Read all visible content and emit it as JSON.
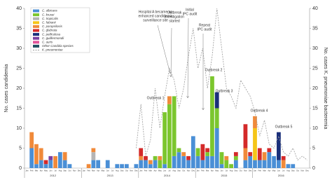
{
  "chart_data": {
    "type": "bar",
    "stacked": true,
    "y_label": "No. cases candidemia",
    "y2_label": "No. cases K. pneumoniae bacteremia",
    "ylim": [
      0,
      40
    ],
    "yticks": [
      0,
      5,
      10,
      15,
      20,
      25,
      30,
      35,
      40
    ],
    "y2lim": [
      0,
      40
    ],
    "y2ticks": [
      0,
      5,
      10,
      15,
      20,
      25,
      30,
      35,
      40
    ],
    "categories": [
      "Jan",
      "Feb",
      "Mar",
      "Apr",
      "May",
      "Jun",
      "Jul",
      "Aug",
      "Sep",
      "Oct",
      "Nov",
      "Dec",
      "Jan",
      "Feb",
      "Mar",
      "Apr",
      "May",
      "Jun",
      "Jul",
      "Aug",
      "Sep",
      "Oct",
      "Nov",
      "Dec",
      "Jan",
      "Feb",
      "Mar",
      "Apr",
      "May",
      "Jun",
      "Jul",
      "Aug",
      "Sep",
      "Oct",
      "Nov",
      "Dec",
      "Jan",
      "Feb",
      "Mar",
      "Apr",
      "May",
      "Jun",
      "Jul",
      "Aug",
      "Sep",
      "Oct",
      "Nov",
      "Dec",
      "Jan",
      "Feb",
      "Mar",
      "Apr",
      "May",
      "Jun",
      "Jul",
      "Aug",
      "Sep",
      "Oct",
      "Nov",
      "Dec"
    ],
    "year_labels": [
      "2012",
      "2013",
      "2014",
      "2015",
      "2016"
    ],
    "series": [
      {
        "name": "C. albicans",
        "color": "#4a8fd6",
        "values": [
          0,
          5,
          1,
          2,
          1,
          2,
          0,
          4,
          2,
          1,
          0,
          0,
          0,
          0,
          2,
          2,
          0,
          2,
          0,
          1,
          1,
          1,
          0,
          1,
          2,
          2,
          1,
          2,
          0,
          1,
          0,
          3,
          4,
          3,
          2,
          8,
          3,
          2,
          3,
          3,
          10,
          1,
          0,
          0,
          2,
          0,
          2,
          3,
          2,
          2,
          2,
          4,
          3,
          2,
          0,
          1,
          1,
          0,
          0,
          0
        ]
      },
      {
        "name": "C. krusei",
        "color": "#7cc62e",
        "values": [
          0,
          0,
          0,
          0,
          0,
          0,
          0,
          0,
          0,
          0,
          0,
          0,
          0,
          0,
          0,
          0,
          0,
          0,
          0,
          0,
          0,
          0,
          0,
          0,
          0,
          0,
          0,
          1,
          2,
          13,
          16,
          15,
          1,
          0,
          0,
          0,
          2,
          0,
          1,
          20,
          5,
          3,
          2,
          1,
          1,
          0,
          0,
          0,
          0,
          0,
          0,
          0,
          0,
          0,
          0,
          0,
          0,
          0,
          0,
          0
        ]
      },
      {
        "name": "C. tropicalis",
        "color": "#b5b5b5",
        "values": [
          0,
          0,
          0,
          0,
          0,
          0,
          0,
          0,
          0,
          0,
          0,
          0,
          0,
          0,
          2,
          0,
          0,
          0,
          0,
          0,
          0,
          0,
          0,
          0,
          0,
          0,
          0,
          0,
          0,
          0,
          0,
          0,
          0,
          0,
          0,
          0,
          0,
          0,
          0,
          0,
          0,
          0,
          0,
          0,
          0,
          0,
          0,
          0,
          0,
          0,
          0,
          0,
          0,
          0,
          0,
          0,
          0,
          0,
          0,
          0
        ]
      },
      {
        "name": "C. fabianii",
        "color": "#f5c518",
        "values": [
          0,
          0,
          0,
          0,
          0,
          0,
          0,
          0,
          0,
          0,
          0,
          0,
          0,
          0,
          0,
          0,
          0,
          0,
          0,
          0,
          0,
          0,
          0,
          0,
          0,
          0,
          0,
          0,
          0,
          0,
          0,
          0,
          0,
          0,
          0,
          0,
          0,
          0,
          0,
          0,
          0,
          0,
          0,
          0,
          0,
          0,
          0,
          0,
          8,
          0,
          0,
          0,
          0,
          0,
          0,
          0,
          0,
          0,
          0,
          0
        ]
      },
      {
        "name": "C. parapsilosis",
        "color": "#f08a3a",
        "values": [
          0,
          4,
          5,
          3,
          0,
          0,
          3,
          0,
          2,
          0,
          0,
          0,
          0,
          1,
          1,
          0,
          0,
          0,
          0,
          0,
          0,
          0,
          0,
          0,
          1,
          0,
          1,
          0,
          1,
          0,
          2,
          0,
          0,
          1,
          0,
          0,
          0,
          0,
          0,
          0,
          0,
          0,
          1,
          0,
          0,
          0,
          3,
          0,
          3,
          0,
          2,
          0,
          0,
          0,
          2,
          0,
          0,
          0,
          0,
          0
        ]
      },
      {
        "name": "C. glabrata",
        "color": "#d42a2a",
        "values": [
          0,
          0,
          0,
          0,
          1,
          0,
          0,
          0,
          0,
          0,
          0,
          0,
          0,
          0,
          0,
          0,
          0,
          0,
          0,
          0,
          0,
          0,
          0,
          0,
          2,
          1,
          0,
          0,
          0,
          0,
          0,
          0,
          0,
          0,
          1,
          0,
          0,
          4,
          1,
          0,
          0,
          0,
          0,
          0,
          1,
          0,
          6,
          1,
          0,
          3,
          0,
          1,
          0,
          0,
          1,
          0,
          0,
          0,
          0,
          0
        ]
      },
      {
        "name": "C. pelliculosa",
        "color": "#1a2f7a",
        "values": [
          0,
          0,
          0,
          0,
          0,
          0,
          0,
          0,
          0,
          0,
          0,
          0,
          0,
          0,
          0,
          0,
          0,
          0,
          0,
          0,
          0,
          0,
          0,
          0,
          0,
          0,
          0,
          0,
          0,
          0,
          0,
          0,
          0,
          0,
          0,
          0,
          0,
          0,
          0,
          0,
          4,
          0,
          0,
          0,
          0,
          0,
          0,
          0,
          0,
          0,
          0,
          0,
          0,
          7,
          0,
          0,
          0,
          0,
          0,
          0
        ]
      },
      {
        "name": "C. guilliermondii",
        "color": "#7b3fa0",
        "values": [
          0,
          0,
          0,
          0,
          0,
          1,
          0,
          0,
          0,
          0,
          0,
          0,
          0,
          0,
          0,
          0,
          0,
          0,
          0,
          0,
          0,
          0,
          0,
          0,
          0,
          0,
          0,
          0,
          0,
          0,
          0,
          0,
          0,
          0,
          0,
          0,
          0,
          0,
          0,
          0,
          0,
          0,
          0,
          0,
          0,
          0,
          0,
          0,
          0,
          0,
          0,
          0,
          0,
          0,
          0,
          0,
          0,
          0,
          0,
          0
        ]
      },
      {
        "name": "C. auris",
        "color": "#e0559a",
        "values": [
          0,
          0,
          0,
          0,
          0,
          0,
          0,
          0,
          0,
          0,
          0,
          0,
          0,
          0,
          0,
          0,
          0,
          0,
          0,
          0,
          0,
          0,
          0,
          0,
          0,
          0,
          0,
          0,
          0,
          0,
          0,
          0,
          0,
          0,
          0,
          0,
          0,
          0,
          0,
          0,
          0,
          0,
          0,
          0,
          0,
          0,
          0,
          0,
          0,
          0,
          0,
          0,
          0,
          0,
          0,
          0,
          0,
          0,
          0,
          0
        ]
      },
      {
        "name": "Other Candida species",
        "color": "#1f4e5f",
        "values": [
          0,
          0,
          0,
          0,
          0,
          0,
          0,
          0,
          0,
          0,
          0,
          0,
          0,
          0,
          0,
          0,
          0,
          0,
          0,
          0,
          0,
          0,
          0,
          0,
          0,
          0,
          0,
          0,
          0,
          0,
          0,
          0,
          0,
          0,
          0,
          0,
          0,
          0,
          0,
          0,
          0,
          0,
          0,
          0,
          0,
          0,
          0,
          0,
          0,
          0,
          0,
          0,
          0,
          0,
          0,
          0,
          0,
          0,
          0,
          0
        ]
      },
      {
        "name": "K. pneumoniae",
        "type": "line",
        "axis": "y2",
        "color": "#9a9a9a",
        "values": [
          null,
          null,
          null,
          null,
          null,
          null,
          null,
          null,
          null,
          null,
          null,
          null,
          null,
          null,
          null,
          null,
          null,
          null,
          null,
          null,
          null,
          null,
          null,
          5,
          16,
          3,
          7,
          20,
          10,
          18,
          25,
          22,
          15,
          20,
          28,
          35,
          25,
          30,
          20,
          28,
          40,
          30,
          20,
          18,
          15,
          22,
          20,
          18,
          14,
          8,
          12,
          6,
          5,
          8,
          4,
          3,
          5,
          2,
          3,
          2
        ]
      }
    ],
    "annotations": [
      {
        "lines": [
          "Hospital A became an",
          "enhanced candidemia",
          "surveillance site"
        ]
      },
      {
        "lines": [
          "Outbreak",
          "investigation",
          "started"
        ]
      },
      {
        "lines": [
          "Initial",
          "IPC audit"
        ]
      },
      {
        "lines": [
          "Repeat",
          "IPC audit"
        ]
      },
      {
        "lines": [
          "Outbreak 1"
        ]
      },
      {
        "lines": [
          "Outbreak 2"
        ]
      },
      {
        "lines": [
          "Outbreak 3"
        ]
      },
      {
        "lines": [
          "Outbreak 4"
        ]
      },
      {
        "lines": [
          "Outbreak 5"
        ]
      }
    ]
  }
}
